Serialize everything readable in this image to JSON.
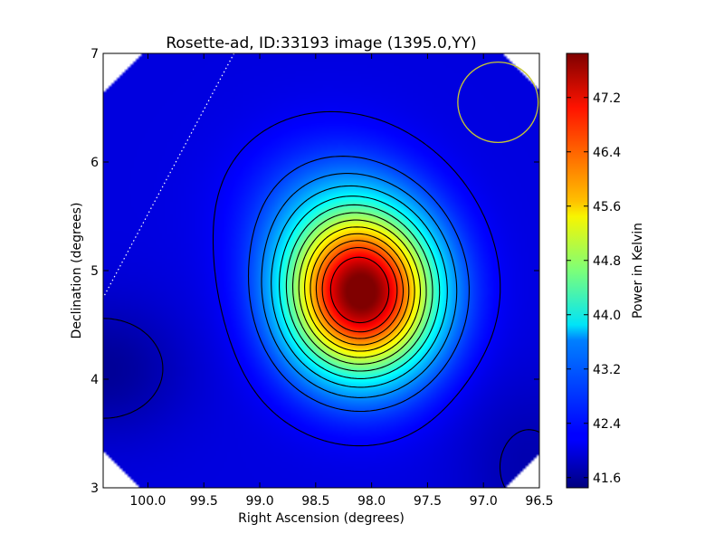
{
  "chart_data": {
    "type": "heatmap",
    "title": "Rosette-ad, ID:33193 image (1395.0,YY)",
    "xlabel": "Right Ascension (degrees)",
    "ylabel": "Declination (degrees)",
    "colorbar_label": "Power in Kelvin",
    "xlim": [
      100.4,
      96.5
    ],
    "ylim": [
      3,
      7
    ],
    "x_ticks": [
      "100.0",
      "99.5",
      "99.0",
      "98.5",
      "98.0",
      "97.5",
      "97.0",
      "96.5"
    ],
    "x_tick_values": [
      100.0,
      99.5,
      99.0,
      98.5,
      98.0,
      97.5,
      97.0,
      96.5
    ],
    "y_ticks": [
      "3",
      "4",
      "5",
      "6",
      "7"
    ],
    "y_tick_values": [
      3,
      4,
      5,
      6,
      7
    ],
    "colorbar_ticks": [
      "41.6",
      "42.4",
      "43.2",
      "44.0",
      "44.8",
      "45.6",
      "46.4",
      "47.2"
    ],
    "colorbar_tick_values": [
      41.6,
      42.4,
      43.2,
      44.0,
      44.8,
      45.6,
      46.4,
      47.2
    ],
    "colorbar_range": [
      41.45,
      47.85
    ],
    "colormap": "jet",
    "grid": false,
    "peak": {
      "ra": 98.1,
      "dec": 4.8,
      "value": 47.8
    },
    "secondary_minimum": {
      "ra": 100.4,
      "dec": 4.1,
      "value": 41.5
    },
    "contour_levels": [
      41.8,
      42.2,
      42.7,
      43.1,
      43.5,
      43.9,
      44.3,
      44.7,
      45.1,
      45.5,
      45.9,
      46.3,
      46.7,
      47.2
    ],
    "beam_circle": {
      "ra": 96.87,
      "dec": 6.55,
      "radius_deg": 0.37,
      "color": "#c8c832"
    },
    "dotted_line": [
      {
        "ra": 99.23,
        "dec": 7.0
      },
      {
        "ra": 100.4,
        "dec": 4.75
      }
    ]
  }
}
